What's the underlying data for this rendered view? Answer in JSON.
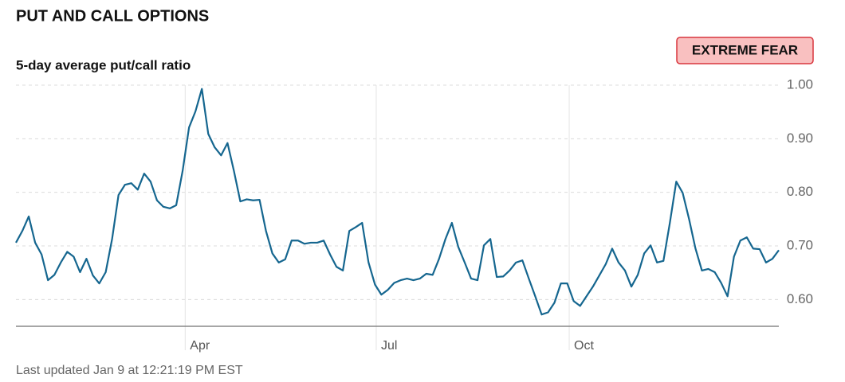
{
  "chart_data": {
    "type": "line",
    "title": "PUT AND CALL OPTIONS",
    "subtitle": "5-day average put/call ratio",
    "badge": "EXTREME FEAR",
    "footer": "Last updated Jan 9 at 12:21:19 PM EST",
    "color": "#15668f",
    "values": [
      0.706,
      0.728,
      0.755,
      0.706,
      0.684,
      0.636,
      0.646,
      0.669,
      0.689,
      0.68,
      0.651,
      0.676,
      0.645,
      0.63,
      0.651,
      0.713,
      0.795,
      0.814,
      0.817,
      0.805,
      0.835,
      0.82,
      0.785,
      0.773,
      0.77,
      0.776,
      0.84,
      0.921,
      0.951,
      0.993,
      0.909,
      0.884,
      0.869,
      0.892,
      0.84,
      0.783,
      0.787,
      0.785,
      0.786,
      0.728,
      0.686,
      0.669,
      0.675,
      0.71,
      0.71,
      0.704,
      0.706,
      0.706,
      0.71,
      0.684,
      0.661,
      0.654,
      0.728,
      0.735,
      0.743,
      0.669,
      0.628,
      0.609,
      0.618,
      0.631,
      0.636,
      0.639,
      0.636,
      0.639,
      0.648,
      0.646,
      0.676,
      0.713,
      0.743,
      0.698,
      0.669,
      0.639,
      0.636,
      0.701,
      0.713,
      0.642,
      0.643,
      0.654,
      0.669,
      0.673,
      0.639,
      0.606,
      0.572,
      0.576,
      0.594,
      0.63,
      0.63,
      0.597,
      0.588,
      0.606,
      0.624,
      0.645,
      0.666,
      0.695,
      0.669,
      0.654,
      0.624,
      0.646,
      0.686,
      0.701,
      0.669,
      0.672,
      0.743,
      0.82,
      0.799,
      0.75,
      0.695,
      0.654,
      0.657,
      0.651,
      0.631,
      0.606,
      0.68,
      0.71,
      0.716,
      0.695,
      0.694,
      0.669,
      0.676,
      0.692
    ],
    "xlim": [
      0,
      119
    ],
    "xticks": [
      {
        "value": 26.4,
        "label": "Apr"
      },
      {
        "value": 56.2,
        "label": "Jul"
      },
      {
        "value": 86.3,
        "label": "Oct"
      }
    ],
    "ylim": [
      0.55,
      1.0
    ],
    "yticks": [
      {
        "value": 0.6,
        "label": "0.60"
      },
      {
        "value": 0.7,
        "label": "0.70"
      },
      {
        "value": 0.8,
        "label": "0.80"
      },
      {
        "value": 0.9,
        "label": "0.90"
      },
      {
        "value": 1.0,
        "label": "1.00"
      }
    ],
    "grid": true
  }
}
